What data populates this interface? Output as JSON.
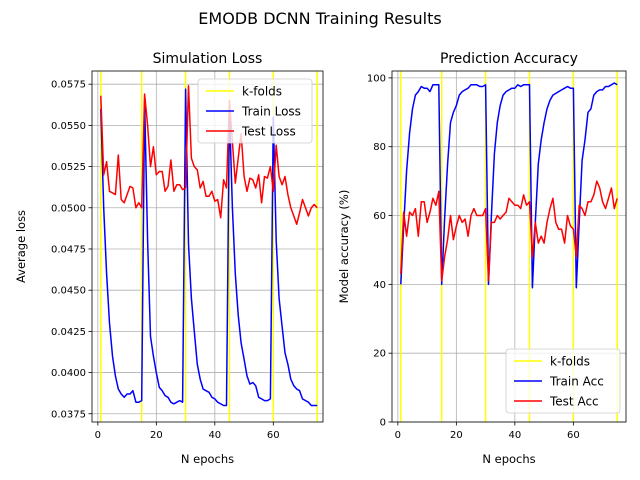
{
  "suptitle": "EMODB DCNN Training Results",
  "chart_data": [
    {
      "type": "line",
      "title": "Simulation Loss",
      "xlabel": "N epochs",
      "ylabel": "Average loss",
      "xlim": [
        -2,
        77
      ],
      "ylim": [
        0.037,
        0.0583
      ],
      "xticks": [
        0,
        20,
        40,
        60
      ],
      "yticks": [
        0.0375,
        0.04,
        0.0425,
        0.045,
        0.0475,
        0.05,
        0.0525,
        0.055,
        0.0575
      ],
      "ytick_labels": [
        "0.0375",
        "0.0400",
        "0.0425",
        "0.0450",
        "0.0475",
        "0.0500",
        "0.0525",
        "0.0550",
        "0.0575"
      ],
      "grid": true,
      "legend_position": "top-right",
      "kfolds": [
        1,
        15,
        30,
        45,
        60,
        75
      ],
      "series": [
        {
          "name": "k-folds",
          "color": "#ffff00",
          "kind": "vline"
        },
        {
          "name": "Train Loss",
          "color": "#0000ff",
          "x": [
            1,
            2,
            3,
            4,
            5,
            6,
            7,
            8,
            9,
            10,
            11,
            12,
            13,
            14,
            15,
            16,
            17,
            18,
            19,
            20,
            21,
            22,
            23,
            24,
            25,
            26,
            27,
            28,
            29,
            30,
            31,
            32,
            33,
            34,
            35,
            36,
            37,
            38,
            39,
            40,
            41,
            42,
            43,
            44,
            45,
            46,
            47,
            48,
            49,
            50,
            51,
            52,
            53,
            54,
            55,
            56,
            57,
            58,
            59,
            60,
            61,
            62,
            63,
            64,
            65,
            66,
            67,
            68,
            69,
            70,
            71,
            72,
            73,
            74,
            75
          ],
          "values": [
            0.056,
            0.05,
            0.046,
            0.043,
            0.041,
            0.0398,
            0.039,
            0.0387,
            0.0385,
            0.0387,
            0.0387,
            0.0389,
            0.0382,
            0.0382,
            0.0383,
            0.0565,
            0.048,
            0.0422,
            0.041,
            0.04,
            0.0391,
            0.0389,
            0.0386,
            0.0385,
            0.0382,
            0.0381,
            0.0382,
            0.0383,
            0.0382,
            0.0572,
            0.0478,
            0.0445,
            0.0425,
            0.0405,
            0.0396,
            0.039,
            0.0389,
            0.0388,
            0.0385,
            0.0384,
            0.0382,
            0.0381,
            0.038,
            0.038,
            0.056,
            0.05,
            0.046,
            0.0435,
            0.0418,
            0.0408,
            0.0398,
            0.0393,
            0.0394,
            0.0392,
            0.0385,
            0.0384,
            0.0383,
            0.0383,
            0.0384,
            0.0555,
            0.048,
            0.0445,
            0.0428,
            0.0412,
            0.0405,
            0.0396,
            0.0392,
            0.039,
            0.0389,
            0.0384,
            0.0383,
            0.0382,
            0.038,
            0.038,
            0.038
          ]
        },
        {
          "name": "Test Loss",
          "color": "#ff0000",
          "x": [
            1,
            2,
            3,
            4,
            5,
            6,
            7,
            8,
            9,
            10,
            11,
            12,
            13,
            14,
            15,
            16,
            17,
            18,
            19,
            20,
            21,
            22,
            23,
            24,
            25,
            26,
            27,
            28,
            29,
            30,
            31,
            32,
            33,
            34,
            35,
            36,
            37,
            38,
            39,
            40,
            41,
            42,
            43,
            44,
            45,
            46,
            47,
            48,
            49,
            50,
            51,
            52,
            53,
            54,
            55,
            56,
            57,
            58,
            59,
            60,
            61,
            62,
            63,
            64,
            65,
            66,
            67,
            68,
            69,
            70,
            71,
            72,
            73,
            74,
            75
          ],
          "values": [
            0.0568,
            0.052,
            0.0528,
            0.051,
            0.0509,
            0.0508,
            0.0532,
            0.0505,
            0.0503,
            0.0508,
            0.0513,
            0.0512,
            0.05,
            0.0503,
            0.05,
            0.0569,
            0.055,
            0.0525,
            0.0537,
            0.052,
            0.0522,
            0.0522,
            0.051,
            0.0513,
            0.0529,
            0.051,
            0.0514,
            0.0514,
            0.0511,
            0.0512,
            0.0574,
            0.053,
            0.0525,
            0.0523,
            0.0512,
            0.0516,
            0.0507,
            0.0507,
            0.051,
            0.0504,
            0.0505,
            0.0494,
            0.0517,
            0.0512,
            0.0565,
            0.054,
            0.0515,
            0.053,
            0.0545,
            0.0519,
            0.051,
            0.0518,
            0.0517,
            0.0512,
            0.052,
            0.0503,
            0.0519,
            0.0518,
            0.0525,
            0.051,
            0.0538,
            0.0519,
            0.0514,
            0.0519,
            0.0508,
            0.05,
            0.0495,
            0.049,
            0.0497,
            0.0505,
            0.05,
            0.0495,
            0.05,
            0.0502,
            0.05
          ]
        }
      ]
    },
    {
      "type": "line",
      "title": "Prediction Accuracy",
      "xlabel": "N epochs",
      "ylabel": "Model accuracy (%)",
      "xlim": [
        -2,
        78
      ],
      "ylim": [
        0,
        102
      ],
      "xticks": [
        0,
        20,
        40,
        60
      ],
      "yticks": [
        0,
        20,
        40,
        60,
        80,
        100
      ],
      "ytick_labels": [
        "0",
        "20",
        "40",
        "60",
        "80",
        "100"
      ],
      "grid": true,
      "legend_position": "bottom-right",
      "kfolds": [
        1,
        15,
        30,
        45,
        60,
        75
      ],
      "series": [
        {
          "name": "k-folds",
          "color": "#ffff00",
          "kind": "vline"
        },
        {
          "name": "Train Acc",
          "color": "#0000ff",
          "x": [
            1,
            2,
            3,
            4,
            5,
            6,
            7,
            8,
            9,
            10,
            11,
            12,
            13,
            14,
            15,
            16,
            17,
            18,
            19,
            20,
            21,
            22,
            23,
            24,
            25,
            26,
            27,
            28,
            29,
            30,
            31,
            32,
            33,
            34,
            35,
            36,
            37,
            38,
            39,
            40,
            41,
            42,
            43,
            44,
            45,
            46,
            47,
            48,
            49,
            50,
            51,
            52,
            53,
            54,
            55,
            56,
            57,
            58,
            59,
            60,
            61,
            62,
            63,
            64,
            65,
            66,
            67,
            68,
            69,
            70,
            71,
            72,
            73,
            74,
            75
          ],
          "values": [
            40,
            57,
            73,
            84,
            91,
            95,
            96,
            97.5,
            97,
            97,
            96,
            98,
            98,
            98,
            40,
            59,
            75,
            87,
            90,
            92,
            95,
            96,
            96.5,
            97,
            98,
            98,
            98,
            97.5,
            97.5,
            98,
            40,
            60,
            78,
            87,
            92,
            95,
            96,
            96.5,
            97,
            97,
            98,
            97.5,
            98,
            98,
            98,
            39,
            58,
            75,
            82,
            87,
            91,
            93.5,
            95,
            95.5,
            96,
            96.5,
            97,
            97.5,
            97,
            97,
            39,
            58,
            76,
            82,
            90,
            91,
            95,
            96,
            96.5,
            96.5,
            97.5,
            97.5,
            98,
            98.5,
            98
          ]
        },
        {
          "name": "Test Acc",
          "color": "#ff0000",
          "x": [
            1,
            2,
            3,
            4,
            5,
            6,
            7,
            8,
            9,
            10,
            11,
            12,
            13,
            14,
            15,
            16,
            17,
            18,
            19,
            20,
            21,
            22,
            23,
            24,
            25,
            26,
            27,
            28,
            29,
            30,
            31,
            32,
            33,
            34,
            35,
            36,
            37,
            38,
            39,
            40,
            41,
            42,
            43,
            44,
            45,
            46,
            47,
            48,
            49,
            50,
            51,
            52,
            53,
            54,
            55,
            56,
            57,
            58,
            59,
            60,
            61,
            62,
            63,
            64,
            65,
            66,
            67,
            68,
            69,
            70,
            71,
            72,
            73,
            74,
            75
          ],
          "values": [
            43,
            61,
            54,
            61,
            60,
            62,
            54,
            64,
            64,
            58,
            61,
            65,
            63,
            67,
            41,
            48,
            53,
            60,
            53,
            57,
            60,
            58,
            59,
            54,
            60,
            62,
            60,
            60,
            60,
            62,
            41,
            58,
            58,
            60,
            59,
            60,
            61,
            65,
            64,
            63,
            63,
            62,
            66,
            63,
            64,
            48,
            58,
            52,
            54,
            52,
            58,
            62,
            65,
            58,
            56,
            56,
            52,
            60,
            57,
            56,
            48,
            63,
            62,
            60,
            64,
            64,
            66,
            70,
            68,
            64,
            62,
            65,
            68,
            62,
            65
          ]
        }
      ]
    }
  ]
}
